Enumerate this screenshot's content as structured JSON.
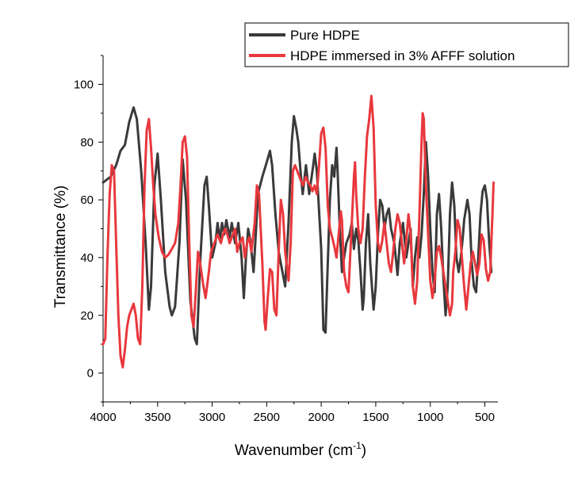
{
  "chart_data": {
    "type": "line",
    "xlabel": {
      "main": "Wavenumber (cm",
      "sup": "-1",
      "close": ")"
    },
    "ylabel": "Transmittance (%)",
    "xlim": [
      4000,
      380
    ],
    "ylim": [
      -10,
      110
    ],
    "x_reversed": true,
    "x_ticks": [
      4000,
      3500,
      3000,
      2500,
      2000,
      1500,
      1000,
      500
    ],
    "y_ticks": [
      0,
      20,
      40,
      60,
      80,
      100
    ],
    "grid": false,
    "legend_position": "top-right",
    "series": [
      {
        "name": "Pure HDPE",
        "color": "#3a3a3a",
        "points": [
          [
            4000,
            66
          ],
          [
            3930,
            68
          ],
          [
            3880,
            72
          ],
          [
            3840,
            77
          ],
          [
            3800,
            79
          ],
          [
            3760,
            87
          ],
          [
            3720,
            92
          ],
          [
            3690,
            88
          ],
          [
            3650,
            70
          ],
          [
            3610,
            45
          ],
          [
            3580,
            22
          ],
          [
            3560,
            30
          ],
          [
            3530,
            65
          ],
          [
            3500,
            76
          ],
          [
            3470,
            60
          ],
          [
            3430,
            35
          ],
          [
            3390,
            23
          ],
          [
            3370,
            20
          ],
          [
            3340,
            23
          ],
          [
            3300,
            45
          ],
          [
            3270,
            74
          ],
          [
            3240,
            60
          ],
          [
            3200,
            25
          ],
          [
            3160,
            12
          ],
          [
            3140,
            10
          ],
          [
            3110,
            38
          ],
          [
            3070,
            65
          ],
          [
            3050,
            68
          ],
          [
            3030,
            58
          ],
          [
            3000,
            40
          ],
          [
            2970,
            45
          ],
          [
            2950,
            52
          ],
          [
            2930,
            46
          ],
          [
            2910,
            52
          ],
          [
            2890,
            48
          ],
          [
            2870,
            53
          ],
          [
            2840,
            47
          ],
          [
            2820,
            52
          ],
          [
            2790,
            45
          ],
          [
            2760,
            52
          ],
          [
            2730,
            40
          ],
          [
            2710,
            26
          ],
          [
            2690,
            40
          ],
          [
            2670,
            50
          ],
          [
            2650,
            46
          ],
          [
            2620,
            35
          ],
          [
            2600,
            48
          ],
          [
            2580,
            62
          ],
          [
            2540,
            68
          ],
          [
            2500,
            73
          ],
          [
            2470,
            77
          ],
          [
            2450,
            72
          ],
          [
            2420,
            55
          ],
          [
            2390,
            42
          ],
          [
            2370,
            38
          ],
          [
            2330,
            30
          ],
          [
            2300,
            52
          ],
          [
            2270,
            80
          ],
          [
            2250,
            89
          ],
          [
            2230,
            85
          ],
          [
            2210,
            80
          ],
          [
            2190,
            70
          ],
          [
            2170,
            62
          ],
          [
            2140,
            72
          ],
          [
            2110,
            62
          ],
          [
            2080,
            70
          ],
          [
            2060,
            76
          ],
          [
            2040,
            70
          ],
          [
            2000,
            43
          ],
          [
            1980,
            15
          ],
          [
            1960,
            14
          ],
          [
            1940,
            38
          ],
          [
            1920,
            60
          ],
          [
            1900,
            72
          ],
          [
            1880,
            68
          ],
          [
            1860,
            78
          ],
          [
            1850,
            70
          ],
          [
            1830,
            50
          ],
          [
            1810,
            35
          ],
          [
            1790,
            40
          ],
          [
            1770,
            45
          ],
          [
            1740,
            48
          ],
          [
            1720,
            52
          ],
          [
            1700,
            43
          ],
          [
            1680,
            50
          ],
          [
            1660,
            46
          ],
          [
            1640,
            35
          ],
          [
            1620,
            22
          ],
          [
            1610,
            26
          ],
          [
            1590,
            45
          ],
          [
            1570,
            55
          ],
          [
            1550,
            38
          ],
          [
            1520,
            22
          ],
          [
            1500,
            30
          ],
          [
            1480,
            48
          ],
          [
            1460,
            60
          ],
          [
            1440,
            58
          ],
          [
            1420,
            50
          ],
          [
            1400,
            55
          ],
          [
            1380,
            57
          ],
          [
            1360,
            50
          ],
          [
            1330,
            45
          ],
          [
            1300,
            34
          ],
          [
            1280,
            45
          ],
          [
            1250,
            52
          ],
          [
            1220,
            40
          ],
          [
            1200,
            45
          ],
          [
            1180,
            50
          ],
          [
            1160,
            30
          ],
          [
            1140,
            40
          ],
          [
            1120,
            47
          ],
          [
            1100,
            40
          ],
          [
            1080,
            48
          ],
          [
            1060,
            62
          ],
          [
            1040,
            80
          ],
          [
            1020,
            68
          ],
          [
            1000,
            50
          ],
          [
            980,
            35
          ],
          [
            960,
            28
          ],
          [
            940,
            55
          ],
          [
            920,
            62
          ],
          [
            900,
            50
          ],
          [
            880,
            33
          ],
          [
            860,
            20
          ],
          [
            840,
            30
          ],
          [
            820,
            55
          ],
          [
            800,
            66
          ],
          [
            790,
            62
          ],
          [
            780,
            58
          ],
          [
            760,
            40
          ],
          [
            740,
            35
          ],
          [
            720,
            40
          ],
          [
            700,
            48
          ],
          [
            690,
            53
          ],
          [
            660,
            60
          ],
          [
            640,
            55
          ],
          [
            620,
            38
          ],
          [
            600,
            30
          ],
          [
            580,
            28
          ],
          [
            560,
            40
          ],
          [
            540,
            55
          ],
          [
            520,
            63
          ],
          [
            500,
            65
          ],
          [
            480,
            60
          ],
          [
            460,
            45
          ],
          [
            440,
            35
          ]
        ]
      },
      {
        "name": "HDPE immersed in 3% AFFF solution",
        "color": "#e8383d",
        "points": [
          [
            4000,
            10
          ],
          [
            3980,
            12
          ],
          [
            3960,
            40
          ],
          [
            3940,
            62
          ],
          [
            3920,
            72
          ],
          [
            3900,
            70
          ],
          [
            3880,
            45
          ],
          [
            3860,
            20
          ],
          [
            3840,
            6
          ],
          [
            3820,
            2
          ],
          [
            3800,
            8
          ],
          [
            3780,
            16
          ],
          [
            3760,
            20
          ],
          [
            3720,
            24
          ],
          [
            3700,
            20
          ],
          [
            3680,
            12
          ],
          [
            3660,
            10
          ],
          [
            3640,
            30
          ],
          [
            3620,
            65
          ],
          [
            3600,
            84
          ],
          [
            3580,
            88
          ],
          [
            3560,
            78
          ],
          [
            3540,
            65
          ],
          [
            3520,
            55
          ],
          [
            3490,
            47
          ],
          [
            3460,
            42
          ],
          [
            3430,
            40
          ],
          [
            3400,
            41
          ],
          [
            3370,
            43
          ],
          [
            3340,
            45
          ],
          [
            3310,
            52
          ],
          [
            3290,
            65
          ],
          [
            3270,
            80
          ],
          [
            3250,
            82
          ],
          [
            3230,
            75
          ],
          [
            3210,
            45
          ],
          [
            3190,
            20
          ],
          [
            3170,
            16
          ],
          [
            3150,
            28
          ],
          [
            3130,
            42
          ],
          [
            3110,
            38
          ],
          [
            3080,
            30
          ],
          [
            3060,
            26
          ],
          [
            3030,
            35
          ],
          [
            3010,
            42
          ],
          [
            2980,
            45
          ],
          [
            2950,
            48
          ],
          [
            2920,
            45
          ],
          [
            2900,
            48
          ],
          [
            2880,
            50
          ],
          [
            2860,
            48
          ],
          [
            2840,
            45
          ],
          [
            2820,
            47
          ],
          [
            2790,
            50
          ],
          [
            2770,
            42
          ],
          [
            2750,
            45
          ],
          [
            2720,
            47
          ],
          [
            2700,
            40
          ],
          [
            2680,
            45
          ],
          [
            2660,
            47
          ],
          [
            2640,
            42
          ],
          [
            2610,
            52
          ],
          [
            2590,
            65
          ],
          [
            2570,
            62
          ],
          [
            2540,
            38
          ],
          [
            2520,
            18
          ],
          [
            2510,
            15
          ],
          [
            2490,
            26
          ],
          [
            2470,
            36
          ],
          [
            2450,
            35
          ],
          [
            2430,
            22
          ],
          [
            2410,
            20
          ],
          [
            2390,
            42
          ],
          [
            2370,
            60
          ],
          [
            2350,
            55
          ],
          [
            2330,
            42
          ],
          [
            2300,
            32
          ],
          [
            2280,
            45
          ],
          [
            2260,
            70
          ],
          [
            2240,
            72
          ],
          [
            2220,
            70
          ],
          [
            2200,
            68
          ],
          [
            2170,
            65
          ],
          [
            2140,
            68
          ],
          [
            2120,
            66
          ],
          [
            2100,
            65
          ],
          [
            2080,
            63
          ],
          [
            2060,
            65
          ],
          [
            2040,
            62
          ],
          [
            2020,
            72
          ],
          [
            2000,
            83
          ],
          [
            1980,
            85
          ],
          [
            1960,
            78
          ],
          [
            1940,
            58
          ],
          [
            1920,
            50
          ],
          [
            1900,
            47
          ],
          [
            1880,
            44
          ],
          [
            1860,
            40
          ],
          [
            1840,
            48
          ],
          [
            1820,
            56
          ],
          [
            1810,
            53
          ],
          [
            1790,
            35
          ],
          [
            1770,
            30
          ],
          [
            1750,
            28
          ],
          [
            1720,
            52
          ],
          [
            1700,
            68
          ],
          [
            1690,
            73
          ],
          [
            1680,
            62
          ],
          [
            1660,
            50
          ],
          [
            1640,
            45
          ],
          [
            1620,
            50
          ],
          [
            1600,
            68
          ],
          [
            1580,
            82
          ],
          [
            1560,
            88
          ],
          [
            1540,
            96
          ],
          [
            1520,
            85
          ],
          [
            1500,
            58
          ],
          [
            1480,
            45
          ],
          [
            1460,
            42
          ],
          [
            1440,
            46
          ],
          [
            1420,
            52
          ],
          [
            1400,
            45
          ],
          [
            1380,
            38
          ],
          [
            1360,
            35
          ],
          [
            1340,
            42
          ],
          [
            1320,
            50
          ],
          [
            1300,
            55
          ],
          [
            1280,
            52
          ],
          [
            1260,
            45
          ],
          [
            1240,
            38
          ],
          [
            1220,
            46
          ],
          [
            1200,
            55
          ],
          [
            1180,
            48
          ],
          [
            1160,
            30
          ],
          [
            1140,
            24
          ],
          [
            1120,
            32
          ],
          [
            1100,
            55
          ],
          [
            1080,
            80
          ],
          [
            1070,
            90
          ],
          [
            1060,
            88
          ],
          [
            1040,
            65
          ],
          [
            1020,
            48
          ],
          [
            1000,
            32
          ],
          [
            980,
            26
          ],
          [
            960,
            32
          ],
          [
            940,
            42
          ],
          [
            920,
            44
          ],
          [
            900,
            40
          ],
          [
            880,
            35
          ],
          [
            860,
            30
          ],
          [
            840,
            25
          ],
          [
            820,
            20
          ],
          [
            800,
            24
          ],
          [
            790,
            35
          ],
          [
            770,
            42
          ],
          [
            750,
            53
          ],
          [
            730,
            50
          ],
          [
            710,
            40
          ],
          [
            690,
            30
          ],
          [
            670,
            22
          ],
          [
            650,
            30
          ],
          [
            630,
            38
          ],
          [
            610,
            42
          ],
          [
            590,
            38
          ],
          [
            570,
            34
          ],
          [
            550,
            38
          ],
          [
            530,
            48
          ],
          [
            510,
            46
          ],
          [
            490,
            36
          ],
          [
            470,
            32
          ],
          [
            450,
            35
          ],
          [
            440,
            45
          ],
          [
            430,
            55
          ],
          [
            420,
            66
          ]
        ]
      }
    ]
  }
}
